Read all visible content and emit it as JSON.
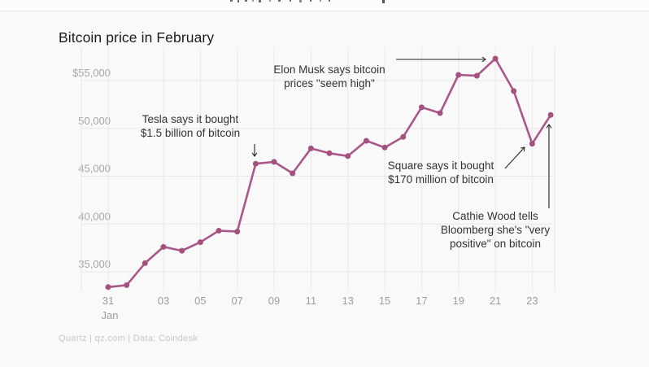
{
  "page": {
    "source_line": "Quartz | qz.com | Data: Coindesk",
    "background_color": "#f9f9f9"
  },
  "chart_data": {
    "type": "line",
    "title": "Bitcoin price in February",
    "x": [
      "Jan 31",
      "Feb 01",
      "Feb 02",
      "Feb 03",
      "Feb 04",
      "Feb 05",
      "Feb 06",
      "Feb 07",
      "Feb 08",
      "Feb 09",
      "Feb 10",
      "Feb 11",
      "Feb 12",
      "Feb 13",
      "Feb 14",
      "Feb 15",
      "Feb 16",
      "Feb 17",
      "Feb 18",
      "Feb 19",
      "Feb 20",
      "Feb 21",
      "Feb 22",
      "Feb 23",
      "Feb 24"
    ],
    "values": [
      33400,
      33600,
      35900,
      37600,
      37200,
      38100,
      39300,
      39200,
      46300,
      46500,
      45300,
      47900,
      47400,
      47100,
      48700,
      48000,
      49100,
      52200,
      51600,
      55600,
      55500,
      57300,
      53900,
      48400,
      51400
    ],
    "ylabel": "",
    "xlabel": "",
    "ylim": [
      32500,
      58200
    ],
    "grid": true,
    "legend": "none",
    "line_color": "#aa5789",
    "point_color": "#a3517f",
    "grid_color": "#e8e8e8",
    "y_ticks": [
      {
        "label": "$55,000",
        "value": 55000
      },
      {
        "label": "50,000",
        "value": 50000
      },
      {
        "label": "45,000",
        "value": 45000
      },
      {
        "label": "40,000",
        "value": 40000
      },
      {
        "label": "35,000",
        "value": 35000
      }
    ],
    "x_ticks": [
      {
        "label": "31",
        "index": 0
      },
      {
        "label": "03",
        "index": 3
      },
      {
        "label": "05",
        "index": 5
      },
      {
        "label": "07",
        "index": 7
      },
      {
        "label": "09",
        "index": 9
      },
      {
        "label": "11",
        "index": 11
      },
      {
        "label": "13",
        "index": 13
      },
      {
        "label": "15",
        "index": 15
      },
      {
        "label": "17",
        "index": 17
      },
      {
        "label": "19",
        "index": 19
      },
      {
        "label": "21",
        "index": 21
      },
      {
        "label": "23",
        "index": 23
      }
    ],
    "x_month_label": "Jan",
    "annotations": {
      "tesla": {
        "lines": [
          "Tesla says it bought",
          "$1.5 billion of bitcoin"
        ],
        "points_to": "Feb 08"
      },
      "musk": {
        "lines": [
          "Elon Musk says bitcoin",
          "prices \"seem high\""
        ],
        "points_to": "Feb 21"
      },
      "square": {
        "lines": [
          "Square says it bought",
          "$170 million of bitcoin"
        ],
        "points_to": "Feb 23"
      },
      "cathie": {
        "lines": [
          "Cathie Wood tells",
          "Bloomberg she's \"very",
          "positive\" on bitcoin"
        ],
        "points_to": "Feb 24"
      }
    }
  }
}
